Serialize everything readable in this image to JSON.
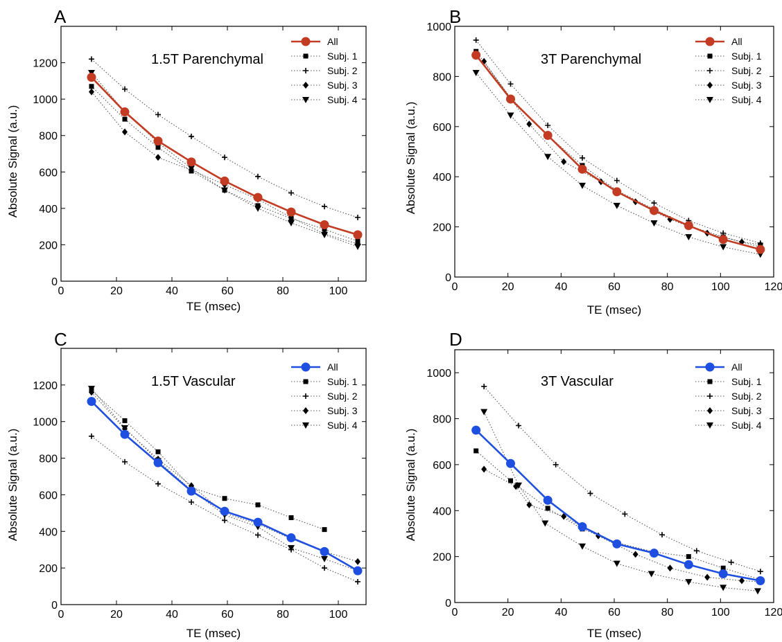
{
  "chart_data": [
    {
      "panel_label": "A",
      "type": "line",
      "title": "1.5T Parenchymal",
      "xlabel": "TE (msec)",
      "ylabel": "Absolute Signal (a.u.)",
      "xlim": [
        0,
        110
      ],
      "ylim": [
        0,
        1400
      ],
      "xticks": [
        0,
        20,
        40,
        60,
        80,
        100
      ],
      "yticks": [
        0,
        200,
        400,
        600,
        800,
        1000,
        1200
      ],
      "legend_placement": "top-right",
      "series": [
        {
          "name": "All",
          "color": "#c23b22",
          "style": "solid",
          "marker": "circle",
          "x": [
            11,
            23,
            35,
            47,
            59,
            71,
            83,
            95,
            107
          ],
          "y": [
            1120,
            930,
            770,
            655,
            550,
            460,
            380,
            310,
            255
          ]
        },
        {
          "name": "Subj. 1",
          "color": "#000000",
          "style": "dotted",
          "marker": "square",
          "x": [
            11,
            23,
            35,
            47,
            59,
            71,
            83,
            95,
            107
          ],
          "y": [
            1070,
            890,
            735,
            605,
            500,
            415,
            345,
            285,
            220
          ]
        },
        {
          "name": "Subj. 2",
          "color": "#000000",
          "style": "dotted",
          "marker": "plus",
          "x": [
            11,
            23,
            35,
            47,
            59,
            71,
            83,
            95,
            107
          ],
          "y": [
            1220,
            1055,
            915,
            795,
            680,
            575,
            485,
            410,
            350
          ]
        },
        {
          "name": "Subj. 3",
          "color": "#000000",
          "style": "dotted",
          "marker": "diamond",
          "x": [
            11,
            23,
            35,
            47,
            59,
            71,
            83,
            95,
            107
          ],
          "y": [
            1040,
            820,
            680,
            610,
            530,
            450,
            350,
            260,
            205
          ]
        },
        {
          "name": "Subj. 4",
          "color": "#000000",
          "style": "dotted",
          "marker": "triangle-down",
          "x": [
            11,
            23,
            35,
            47,
            59,
            71,
            83,
            95,
            107
          ],
          "y": [
            1145,
            930,
            760,
            620,
            500,
            400,
            320,
            255,
            190
          ]
        }
      ]
    },
    {
      "panel_label": "B",
      "type": "line",
      "title": "3T Parenchymal",
      "xlabel": "TE (msec)",
      "ylabel": "Absolute Signal (a.u.)",
      "xlim": [
        0,
        120
      ],
      "ylim": [
        0,
        1000
      ],
      "xticks": [
        0,
        20,
        40,
        60,
        80,
        100,
        120
      ],
      "yticks": [
        0,
        200,
        400,
        600,
        800,
        1000
      ],
      "legend_placement": "top-right",
      "series": [
        {
          "name": "All",
          "color": "#c23b22",
          "style": "solid",
          "marker": "circle",
          "x": [
            8,
            21,
            35,
            48,
            61,
            75,
            88,
            101,
            115
          ],
          "y": [
            885,
            710,
            565,
            430,
            340,
            265,
            205,
            150,
            110
          ]
        },
        {
          "name": "Subj. 1",
          "color": "#000000",
          "style": "dotted",
          "marker": "square",
          "x": [
            8,
            21,
            35,
            48,
            61,
            75,
            88,
            101,
            115
          ],
          "y": [
            900,
            715,
            565,
            445,
            345,
            270,
            205,
            160,
            120
          ]
        },
        {
          "name": "Subj. 2",
          "color": "#000000",
          "style": "dotted",
          "marker": "plus",
          "x": [
            8,
            21,
            35,
            48,
            61,
            75,
            88,
            101,
            115
          ],
          "y": [
            945,
            770,
            605,
            475,
            385,
            295,
            225,
            175,
            135
          ]
        },
        {
          "name": "Subj. 3",
          "color": "#000000",
          "style": "dotted",
          "marker": "diamond",
          "x": [
            11,
            28,
            41,
            55,
            68,
            81,
            95,
            108,
            115
          ],
          "y": [
            860,
            610,
            460,
            380,
            300,
            230,
            175,
            140,
            130
          ]
        },
        {
          "name": "Subj. 4",
          "color": "#000000",
          "style": "dotted",
          "marker": "triangle-down",
          "x": [
            8,
            21,
            35,
            48,
            61,
            75,
            88,
            101,
            115
          ],
          "y": [
            815,
            645,
            480,
            365,
            285,
            215,
            160,
            120,
            90
          ]
        }
      ]
    },
    {
      "panel_label": "C",
      "type": "line",
      "title": "1.5T Vascular",
      "xlabel": "TE (msec)",
      "ylabel": "Absolute Signal (a.u.)",
      "xlim": [
        0,
        110
      ],
      "ylim": [
        0,
        1400
      ],
      "xticks": [
        0,
        20,
        40,
        60,
        80,
        100
      ],
      "yticks": [
        0,
        200,
        400,
        600,
        800,
        1000,
        1200
      ],
      "legend_placement": "top-right",
      "series": [
        {
          "name": "All",
          "color": "#1f4fe0",
          "style": "solid",
          "marker": "circle",
          "x": [
            11,
            23,
            35,
            47,
            59,
            71,
            83,
            95,
            107
          ],
          "y": [
            1110,
            930,
            775,
            620,
            510,
            450,
            365,
            290,
            185
          ]
        },
        {
          "name": "Subj. 1",
          "color": "#000000",
          "style": "dotted",
          "marker": "square",
          "x": [
            11,
            23,
            35,
            47,
            59,
            71,
            83,
            95
          ],
          "y": [
            1170,
            1005,
            835,
            640,
            580,
            545,
            475,
            410
          ]
        },
        {
          "name": "Subj. 2",
          "color": "#000000",
          "style": "dotted",
          "marker": "plus",
          "x": [
            11,
            23,
            35,
            47,
            59,
            71,
            83,
            95,
            107
          ],
          "y": [
            920,
            780,
            660,
            560,
            460,
            380,
            300,
            200,
            125
          ]
        },
        {
          "name": "Subj. 3",
          "color": "#000000",
          "style": "dotted",
          "marker": "diamond",
          "x": [
            11,
            23,
            35,
            47,
            59,
            71,
            83,
            95,
            107
          ],
          "y": [
            1160,
            960,
            795,
            650,
            500,
            440,
            360,
            290,
            235
          ]
        },
        {
          "name": "Subj. 4",
          "color": "#000000",
          "style": "dotted",
          "marker": "triangle-down",
          "x": [
            11,
            23,
            35,
            47,
            59,
            71,
            83,
            95,
            107
          ],
          "y": [
            1180,
            965,
            785,
            625,
            490,
            425,
            310,
            250,
            185
          ]
        }
      ]
    },
    {
      "panel_label": "D",
      "type": "line",
      "title": "3T Vascular",
      "xlabel": "TE (msec)",
      "ylabel": "Absolute Signal (a.u.)",
      "xlim": [
        0,
        120
      ],
      "ylim": [
        0,
        1100
      ],
      "xticks": [
        0,
        20,
        40,
        60,
        80,
        100,
        120
      ],
      "yticks": [
        0,
        200,
        400,
        600,
        800,
        1000
      ],
      "legend_placement": "top-right",
      "series": [
        {
          "name": "All",
          "color": "#1f4fe0",
          "style": "solid",
          "marker": "circle",
          "x": [
            8,
            21,
            35,
            48,
            61,
            75,
            88,
            101,
            115
          ],
          "y": [
            750,
            605,
            445,
            330,
            255,
            215,
            165,
            125,
            95
          ]
        },
        {
          "name": "Subj. 1",
          "color": "#000000",
          "style": "dotted",
          "marker": "square",
          "x": [
            8,
            21,
            35,
            48,
            61,
            75,
            88,
            101,
            115
          ],
          "y": [
            660,
            530,
            410,
            320,
            260,
            220,
            200,
            150,
            100
          ]
        },
        {
          "name": "Subj. 2",
          "color": "#000000",
          "style": "dotted",
          "marker": "plus",
          "x": [
            11,
            24,
            38,
            51,
            64,
            78,
            91,
            104,
            115
          ],
          "y": [
            940,
            770,
            600,
            475,
            385,
            295,
            225,
            175,
            135
          ]
        },
        {
          "name": "Subj. 3",
          "color": "#000000",
          "style": "dotted",
          "marker": "diamond",
          "x": [
            11,
            23,
            28,
            41,
            54,
            68,
            81,
            95,
            108,
            115
          ],
          "y": [
            580,
            505,
            425,
            375,
            290,
            210,
            150,
            110,
            95,
            90
          ]
        },
        {
          "name": "Subj. 4",
          "color": "#000000",
          "style": "dotted",
          "marker": "triangle-down",
          "x": [
            11,
            24,
            34,
            48,
            61,
            74,
            88,
            101,
            114
          ],
          "y": [
            830,
            510,
            345,
            245,
            170,
            125,
            90,
            65,
            50
          ]
        }
      ]
    }
  ]
}
